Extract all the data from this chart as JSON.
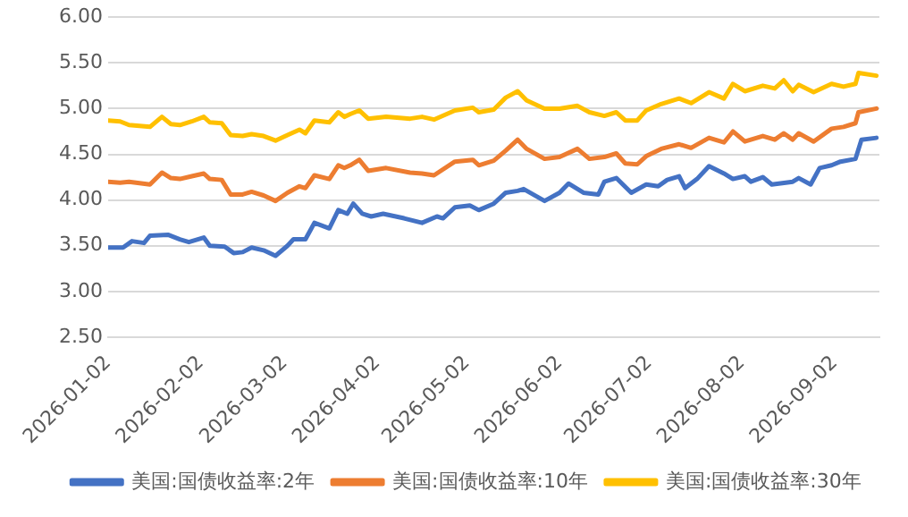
{
  "chart_data": {
    "type": "line",
    "x": [
      "2026-01-02",
      "2026-01-06",
      "2026-01-09",
      "2026-01-16",
      "2026-01-20",
      "2026-01-23",
      "2026-01-26",
      "2026-01-30",
      "2026-02-03",
      "2026-02-05",
      "2026-02-09",
      "2026-02-12",
      "2026-02-16",
      "2026-02-19",
      "2026-02-23",
      "2026-02-27",
      "2026-03-03",
      "2026-03-07",
      "2026-03-09",
      "2026-03-12",
      "2026-03-17",
      "2026-03-20",
      "2026-03-22",
      "2026-03-24",
      "2026-03-27",
      "2026-03-30",
      "2026-04-05",
      "2026-04-13",
      "2026-04-17",
      "2026-04-21",
      "2026-04-28",
      "2026-05-04",
      "2026-05-06",
      "2026-05-11",
      "2026-05-15",
      "2026-05-19",
      "2026-05-22",
      "2026-05-28",
      "2026-06-02",
      "2026-06-08",
      "2026-06-12",
      "2026-06-17",
      "2026-06-21",
      "2026-06-24",
      "2026-06-28",
      "2026-07-01",
      "2026-07-06",
      "2026-07-12",
      "2026-07-16",
      "2026-07-22",
      "2026-07-27",
      "2026-07-30",
      "2026-08-03",
      "2026-08-09",
      "2026-08-13",
      "2026-08-16",
      "2026-08-19",
      "2026-08-21",
      "2026-08-26",
      "2026-09-01",
      "2026-09-05",
      "2026-09-09",
      "2026-09-10",
      "2026-09-16"
    ],
    "series": [
      {
        "name": "美国:国债收益率:2年",
        "color": "#4472c4",
        "x": [
          "2026-01-02",
          "2026-01-07",
          "2026-01-10",
          "2026-01-14",
          "2026-01-16",
          "2026-01-22",
          "2026-01-26",
          "2026-01-29",
          "2026-02-03",
          "2026-02-05",
          "2026-02-10",
          "2026-02-13",
          "2026-02-16",
          "2026-02-19",
          "2026-02-23",
          "2026-02-27",
          "2026-03-03",
          "2026-03-05",
          "2026-03-09",
          "2026-03-12",
          "2026-03-17",
          "2026-03-20",
          "2026-03-23",
          "2026-03-25",
          "2026-03-28",
          "2026-03-31",
          "2026-04-04",
          "2026-04-11",
          "2026-04-17",
          "2026-04-22",
          "2026-04-24",
          "2026-04-28",
          "2026-05-03",
          "2026-05-06",
          "2026-05-11",
          "2026-05-15",
          "2026-05-19",
          "2026-05-21",
          "2026-05-28",
          "2026-06-02",
          "2026-06-05",
          "2026-06-10",
          "2026-06-15",
          "2026-06-17",
          "2026-06-21",
          "2026-06-26",
          "2026-07-01",
          "2026-07-05",
          "2026-07-08",
          "2026-07-12",
          "2026-07-14",
          "2026-07-18",
          "2026-07-22",
          "2026-07-27",
          "2026-07-30",
          "2026-08-03",
          "2026-08-05",
          "2026-08-09",
          "2026-08-12",
          "2026-08-19",
          "2026-08-21",
          "2026-08-25",
          "2026-08-28",
          "2026-09-01",
          "2026-09-04",
          "2026-09-09",
          "2026-09-11",
          "2026-09-16"
        ],
        "values": [
          3.48,
          3.48,
          3.55,
          3.53,
          3.61,
          3.62,
          3.57,
          3.54,
          3.59,
          3.5,
          3.49,
          3.42,
          3.43,
          3.48,
          3.45,
          3.39,
          3.5,
          3.57,
          3.57,
          3.75,
          3.69,
          3.89,
          3.85,
          3.96,
          3.85,
          3.82,
          3.85,
          3.8,
          3.75,
          3.82,
          3.8,
          3.92,
          3.94,
          3.89,
          3.96,
          4.08,
          4.1,
          4.12,
          3.99,
          4.08,
          4.18,
          4.08,
          4.06,
          4.2,
          4.24,
          4.08,
          4.17,
          4.15,
          4.22,
          4.26,
          4.13,
          4.23,
          4.37,
          4.29,
          4.23,
          4.26,
          4.2,
          4.25,
          4.17,
          4.2,
          4.24,
          4.17,
          4.35,
          4.38,
          4.42,
          4.45,
          4.66,
          4.68
        ]
      },
      {
        "name": "美国:国债收益率:10年",
        "color": "#ed7d31",
        "values": [
          4.2,
          4.19,
          4.2,
          4.17,
          4.3,
          4.24,
          4.23,
          4.26,
          4.29,
          4.23,
          4.22,
          4.06,
          4.06,
          4.09,
          4.05,
          3.99,
          4.08,
          4.15,
          4.13,
          4.27,
          4.23,
          4.38,
          4.35,
          4.38,
          4.44,
          4.32,
          4.35,
          4.3,
          4.29,
          4.27,
          4.42,
          4.44,
          4.38,
          4.43,
          4.54,
          4.66,
          4.56,
          4.45,
          4.47,
          4.56,
          4.45,
          4.47,
          4.51,
          4.4,
          4.39,
          4.48,
          4.56,
          4.61,
          4.57,
          4.68,
          4.63,
          4.75,
          4.64,
          4.7,
          4.66,
          4.73,
          4.66,
          4.73,
          4.64,
          4.78,
          4.8,
          4.84,
          4.96,
          5.0
        ]
      },
      {
        "name": "美国:国债收益率:30年",
        "color": "#ffc000",
        "values": [
          4.87,
          4.86,
          4.82,
          4.8,
          4.91,
          4.83,
          4.82,
          4.86,
          4.91,
          4.85,
          4.84,
          4.71,
          4.7,
          4.72,
          4.7,
          4.65,
          4.71,
          4.77,
          4.73,
          4.87,
          4.85,
          4.96,
          4.91,
          4.94,
          4.98,
          4.89,
          4.91,
          4.89,
          4.91,
          4.88,
          4.98,
          5.01,
          4.96,
          4.99,
          5.12,
          5.19,
          5.09,
          5.0,
          5.0,
          5.03,
          4.96,
          4.92,
          4.96,
          4.87,
          4.87,
          4.98,
          5.05,
          5.11,
          5.06,
          5.18,
          5.11,
          5.27,
          5.19,
          5.25,
          5.22,
          5.31,
          5.19,
          5.26,
          5.18,
          5.27,
          5.24,
          5.27,
          5.39,
          5.36
        ]
      }
    ],
    "xlim": [
      "2026-01-02",
      "2026-09-17"
    ],
    "xticks": [
      "2026-01-02",
      "2026-02-02",
      "2026-03-02",
      "2026-04-02",
      "2026-05-02",
      "2026-06-02",
      "2026-07-02",
      "2026-08-02",
      "2026-09-02"
    ],
    "ylim": [
      2.5,
      6
    ],
    "yticks": [
      {
        "value": 2.5,
        "label": "2.50"
      },
      {
        "value": 3,
        "label": "3.00"
      },
      {
        "value": 3.5,
        "label": "3.50"
      },
      {
        "value": 4,
        "label": "4.00"
      },
      {
        "value": 4.5,
        "label": "4.50"
      },
      {
        "value": 5,
        "label": "5.00"
      },
      {
        "value": 5.5,
        "label": "5.50"
      },
      {
        "value": 6,
        "label": "6.00"
      }
    ],
    "grid": "y",
    "legend": "bottom",
    "marker": "none",
    "line_style": "solid"
  }
}
